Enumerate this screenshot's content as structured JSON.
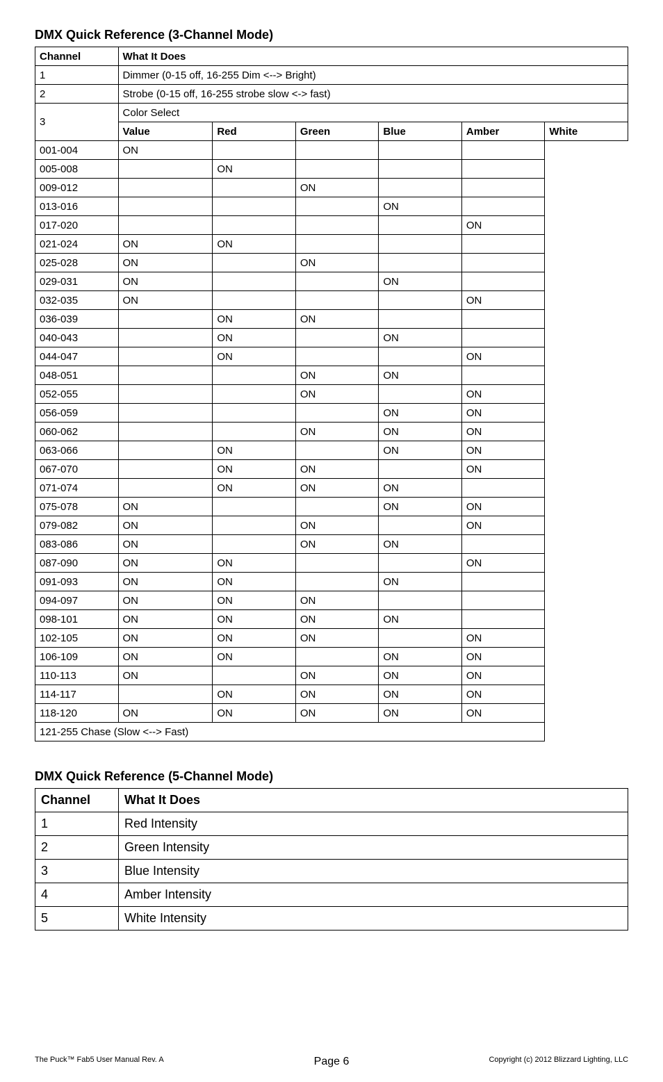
{
  "title3": "DMX Quick Reference (3-Channel Mode)",
  "title5": "DMX Quick Reference (5-Channel Mode)",
  "headers": {
    "channel": "Channel",
    "whatItDoes": "What It Does",
    "value": "Value",
    "red": "Red",
    "green": "Green",
    "blue": "Blue",
    "amber": "Amber",
    "white": "White"
  },
  "ch1": {
    "num": "1",
    "desc": "Dimmer (0-15 off, 16-255 Dim <--> Bright)"
  },
  "ch2": {
    "num": "2",
    "desc": "Strobe (0-15 off, 16-255 strobe slow <-> fast)"
  },
  "ch3": {
    "num": "3",
    "colorSelect": "Color Select",
    "rows": [
      {
        "value": "001-004",
        "r": "ON",
        "g": "",
        "b": "",
        "a": "",
        "w": ""
      },
      {
        "value": "005-008",
        "r": "",
        "g": "ON",
        "b": "",
        "a": "",
        "w": ""
      },
      {
        "value": "009-012",
        "r": "",
        "g": "",
        "b": "ON",
        "a": "",
        "w": ""
      },
      {
        "value": "013-016",
        "r": "",
        "g": "",
        "b": "",
        "a": "ON",
        "w": ""
      },
      {
        "value": "017-020",
        "r": "",
        "g": "",
        "b": "",
        "a": "",
        "w": "ON"
      },
      {
        "value": "021-024",
        "r": "ON",
        "g": "ON",
        "b": "",
        "a": "",
        "w": ""
      },
      {
        "value": "025-028",
        "r": "ON",
        "g": "",
        "b": "ON",
        "a": "",
        "w": ""
      },
      {
        "value": "029-031",
        "r": "ON",
        "g": "",
        "b": "",
        "a": "ON",
        "w": ""
      },
      {
        "value": "032-035",
        "r": "ON",
        "g": "",
        "b": "",
        "a": "",
        "w": "ON"
      },
      {
        "value": "036-039",
        "r": "",
        "g": "ON",
        "b": "ON",
        "a": "",
        "w": ""
      },
      {
        "value": "040-043",
        "r": "",
        "g": "ON",
        "b": "",
        "a": "ON",
        "w": ""
      },
      {
        "value": "044-047",
        "r": "",
        "g": "ON",
        "b": "",
        "a": "",
        "w": "ON"
      },
      {
        "value": "048-051",
        "r": "",
        "g": "",
        "b": "ON",
        "a": "ON",
        "w": ""
      },
      {
        "value": "052-055",
        "r": "",
        "g": "",
        "b": "ON",
        "a": "",
        "w": "ON"
      },
      {
        "value": "056-059",
        "r": "",
        "g": "",
        "b": "",
        "a": "ON",
        "w": "ON"
      },
      {
        "value": "060-062",
        "r": "",
        "g": "",
        "b": "ON",
        "a": "ON",
        "w": "ON"
      },
      {
        "value": "063-066",
        "r": "",
        "g": "ON",
        "b": "",
        "a": "ON",
        "w": "ON"
      },
      {
        "value": "067-070",
        "r": "",
        "g": "ON",
        "b": "ON",
        "a": "",
        "w": "ON"
      },
      {
        "value": "071-074",
        "r": "",
        "g": "ON",
        "b": "ON",
        "a": "ON",
        "w": ""
      },
      {
        "value": "075-078",
        "r": "ON",
        "g": "",
        "b": "",
        "a": "ON",
        "w": "ON"
      },
      {
        "value": "079-082",
        "r": "ON",
        "g": "",
        "b": "ON",
        "a": "",
        "w": "ON"
      },
      {
        "value": "083-086",
        "r": "ON",
        "g": "",
        "b": "ON",
        "a": "ON",
        "w": ""
      },
      {
        "value": "087-090",
        "r": "ON",
        "g": "ON",
        "b": "",
        "a": "",
        "w": "ON"
      },
      {
        "value": "091-093",
        "r": "ON",
        "g": "ON",
        "b": "",
        "a": "ON",
        "w": ""
      },
      {
        "value": "094-097",
        "r": "ON",
        "g": "ON",
        "b": "ON",
        "a": "",
        "w": ""
      },
      {
        "value": "098-101",
        "r": "ON",
        "g": "ON",
        "b": "ON",
        "a": "ON",
        "w": ""
      },
      {
        "value": "102-105",
        "r": "ON",
        "g": "ON",
        "b": "ON",
        "a": "",
        "w": "ON"
      },
      {
        "value": "106-109",
        "r": "ON",
        "g": "ON",
        "b": "",
        "a": "ON",
        "w": "ON"
      },
      {
        "value": "110-113",
        "r": "ON",
        "g": "",
        "b": "ON",
        "a": "ON",
        "w": "ON"
      },
      {
        "value": "114-117",
        "r": "",
        "g": "ON",
        "b": "ON",
        "a": "ON",
        "w": "ON"
      },
      {
        "value": "118-120",
        "r": "ON",
        "g": "ON",
        "b": "ON",
        "a": "ON",
        "w": "ON"
      }
    ],
    "chase": "121-255 Chase (Slow <--> Fast)"
  },
  "table5": {
    "rows": [
      {
        "ch": "1",
        "desc": "Red Intensity"
      },
      {
        "ch": "2",
        "desc": "Green Intensity"
      },
      {
        "ch": "3",
        "desc": "Blue Intensity"
      },
      {
        "ch": "4",
        "desc": "Amber Intensity"
      },
      {
        "ch": "5",
        "desc": "White Intensity"
      }
    ]
  },
  "footer": {
    "left": "The Puck™ Fab5 User Manual Rev. A",
    "page": "Page 6",
    "right": "Copyright (c) 2012 Blizzard Lighting, LLC"
  }
}
